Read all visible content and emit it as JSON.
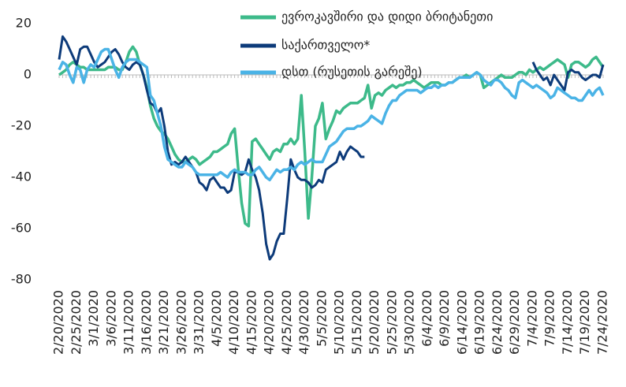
{
  "chart_data": {
    "type": "line",
    "categories": [
      "2/20/2020",
      null,
      null,
      null,
      null,
      "2/25/2020",
      null,
      null,
      null,
      null,
      "3/1/2020",
      null,
      null,
      null,
      null,
      "3/6/2020",
      null,
      null,
      null,
      null,
      "3/11/2020",
      null,
      null,
      null,
      null,
      "3/16/2020",
      null,
      null,
      null,
      null,
      "3/21/2020",
      null,
      null,
      null,
      null,
      "3/26/2020",
      null,
      null,
      null,
      null,
      "3/31/2020",
      null,
      null,
      null,
      null,
      "4/5/2020",
      null,
      null,
      null,
      null,
      "4/10/2020",
      null,
      null,
      null,
      null,
      "4/15/2020",
      null,
      null,
      null,
      null,
      "4/20/2020",
      null,
      null,
      null,
      null,
      "4/25/2020",
      null,
      null,
      null,
      null,
      "4/30/2020",
      null,
      null,
      null,
      null,
      "5/5/2020",
      null,
      null,
      null,
      null,
      "5/10/2020",
      null,
      null,
      null,
      null,
      "5/15/2020",
      null,
      null,
      null,
      null,
      "5/20/2020",
      null,
      null,
      null,
      null,
      "5/25/2020",
      null,
      null,
      null,
      null,
      "5/30/2020",
      null,
      null,
      null,
      null,
      "6/4/2020",
      null,
      null,
      null,
      null,
      "6/9/2020",
      null,
      null,
      null,
      null,
      "6/14/2020",
      null,
      null,
      null,
      null,
      "6/19/2020",
      null,
      null,
      null,
      null,
      "6/24/2020",
      null,
      null,
      null,
      null,
      "6/29/2020",
      null,
      null,
      null,
      null,
      "7/4/2020",
      null,
      null,
      null,
      null,
      "7/9/2020",
      null,
      null,
      null,
      null,
      "7/14/2020",
      null,
      null,
      null,
      null,
      "7/19/2020",
      null,
      null,
      null,
      null,
      "7/24/2020"
    ],
    "series": [
      {
        "name": "ევროკავშირი და დიდი ბრიტანეთი",
        "color": "#3dba8a",
        "values": [
          0,
          1,
          2,
          4,
          5,
          4,
          3,
          3,
          2,
          2,
          2,
          2,
          2,
          2,
          3,
          3,
          3,
          2,
          2,
          5,
          9,
          11,
          9,
          4,
          0,
          -5,
          -12,
          -17,
          -20,
          -22,
          -23,
          -25,
          -28,
          -31,
          -33,
          -34,
          -34,
          -33,
          -32,
          -33,
          -35,
          -34,
          -33,
          -32,
          -30,
          -30,
          -29,
          -28,
          -27,
          -23,
          -21,
          -36,
          -50,
          -58,
          -59,
          -26,
          -25,
          -27,
          -29,
          -31,
          -33,
          -30,
          -29,
          -30,
          -27,
          -27,
          -25,
          -27,
          -25,
          -8,
          -30,
          -56,
          -40,
          -20,
          -17,
          -11,
          -25,
          -21,
          -18,
          -14,
          -15,
          -13,
          -12,
          -11,
          -11,
          -11,
          -10,
          -9,
          -4,
          -13,
          -8,
          -7,
          -8,
          -6,
          -5,
          -4,
          -5,
          -4,
          -4,
          -3,
          -3,
          -2,
          -3,
          -4,
          -5,
          -4,
          -3,
          -3,
          -3,
          -4,
          -4,
          -3,
          -3,
          -2,
          -1,
          -1,
          0,
          -1,
          0,
          1,
          0,
          -5,
          -4,
          -3,
          -2,
          -1,
          0,
          -1,
          -1,
          -1,
          0,
          1,
          1,
          0,
          2,
          1,
          2,
          3,
          2,
          3,
          4,
          5,
          6,
          5,
          4,
          -1,
          4,
          5,
          5,
          4,
          3,
          4,
          6,
          7,
          5,
          3
        ]
      },
      {
        "name": "საქართველო*",
        "color": "#0d3b7a",
        "values": [
          6,
          15,
          13,
          10,
          7,
          4,
          10,
          11,
          11,
          8,
          5,
          3,
          4,
          5,
          7,
          9,
          10,
          8,
          5,
          3,
          2,
          4,
          5,
          4,
          0,
          -6,
          -11,
          -12,
          -15,
          -13,
          -20,
          -30,
          -35,
          -34,
          -35,
          -34,
          -32,
          -34,
          -36,
          -38,
          -42,
          -43,
          -45,
          -41,
          -40,
          -42,
          -44,
          -44,
          -46,
          -45,
          -38,
          -38,
          -39,
          -38,
          -33,
          -37,
          -40,
          -45,
          -54,
          -66,
          -72,
          -70,
          -65,
          -62,
          -62,
          -48,
          -33,
          -37,
          -40,
          -41,
          -41,
          -42,
          -44,
          -43,
          -41,
          -42,
          -37,
          -36,
          -35,
          -34,
          -30,
          -33,
          -30,
          -28,
          -29,
          -30,
          -32,
          -32,
          null,
          null,
          null,
          null,
          null,
          null,
          null,
          null,
          null,
          null,
          null,
          null,
          null,
          null,
          null,
          null,
          null,
          null,
          null,
          null,
          null,
          null,
          null,
          null,
          null,
          null,
          null,
          null,
          null,
          null,
          null,
          null,
          null,
          null,
          null,
          null,
          null,
          null,
          null,
          null,
          null,
          null,
          null,
          null,
          null,
          null,
          null,
          5,
          2,
          0,
          -2,
          -1,
          -4,
          0,
          -2,
          -4,
          -6,
          1,
          2,
          1,
          1,
          -1,
          -2,
          -1,
          0,
          0,
          -1,
          4
        ]
      },
      {
        "name": "დსთ (რუსეთის გარეშე)",
        "color": "#4ab3e6",
        "values": [
          2,
          5,
          4,
          0,
          -3,
          3,
          2,
          -3,
          2,
          4,
          3,
          6,
          9,
          10,
          10,
          6,
          2,
          -1,
          3,
          5,
          6,
          6,
          6,
          5,
          4,
          3,
          -8,
          -10,
          -15,
          -20,
          -28,
          -33,
          -34,
          -35,
          -36,
          -36,
          -34,
          -35,
          -36,
          -38,
          -39,
          -39,
          -39,
          -39,
          -39,
          -39,
          -38,
          -39,
          -40,
          -38,
          -37,
          -38,
          -38,
          -38,
          -39,
          -39,
          -37,
          -36,
          -38,
          -40,
          -41,
          -39,
          -37,
          -38,
          -37,
          -37,
          -36,
          -37,
          -35,
          -34,
          -35,
          -34,
          -33,
          -34,
          -34,
          -34,
          -31,
          -28,
          -27,
          -26,
          -24,
          -22,
          -21,
          -21,
          -21,
          -20,
          -20,
          -19,
          -18,
          -16,
          -17,
          -18,
          -19,
          -15,
          -12,
          -10,
          -10,
          -8,
          -7,
          -6,
          -6,
          -6,
          -6,
          -7,
          -6,
          -5,
          -5,
          -4,
          -5,
          -4,
          -4,
          -3,
          -3,
          -2,
          -1,
          -1,
          -1,
          -1,
          0,
          1,
          0,
          -2,
          -3,
          -4,
          -2,
          -2,
          -3,
          -5,
          -6,
          -8,
          -9,
          -3,
          -2,
          -3,
          -4,
          -5,
          -4,
          -5,
          -6,
          -7,
          -9,
          -8,
          -5,
          -6,
          -7,
          -8,
          -9,
          -9,
          -10,
          -10,
          -8,
          -6,
          -8,
          -6,
          -5,
          -8
        ]
      }
    ],
    "ylim": [
      -80,
      20
    ],
    "yticks": [
      -80,
      -60,
      -40,
      -20,
      0,
      20
    ],
    "grid": false,
    "legend": "upper right"
  }
}
